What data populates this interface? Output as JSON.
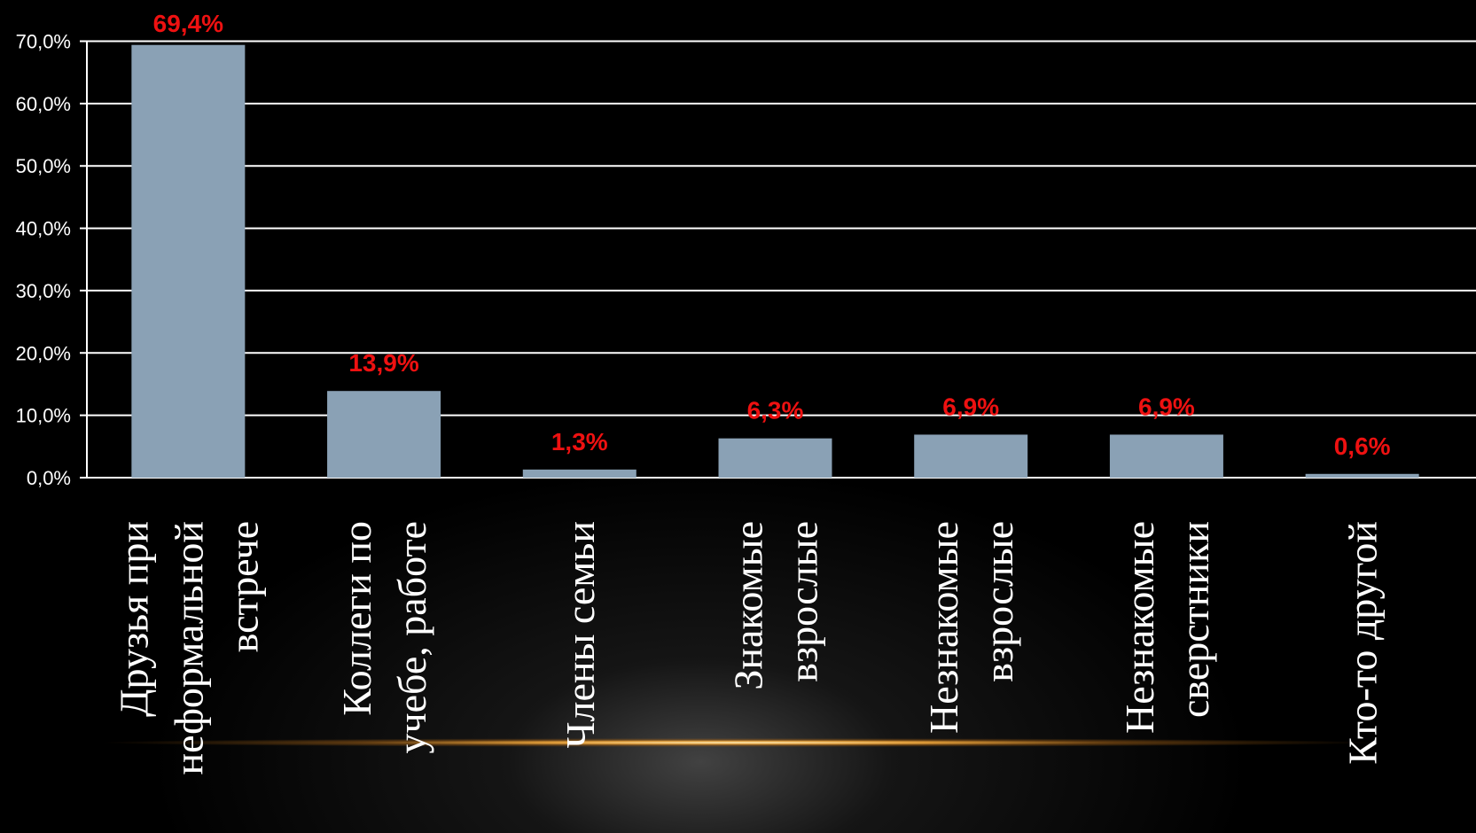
{
  "chart_data": {
    "type": "bar",
    "categories": [
      [
        "Друзья при",
        "неформальной",
        "встрече"
      ],
      [
        "Коллеги по",
        "учебе, работе"
      ],
      [
        "Члены семьи"
      ],
      [
        "Знакомые",
        "взрослые"
      ],
      [
        "Незнакомые",
        "взрослые"
      ],
      [
        "Незнакомые",
        "сверстники"
      ],
      [
        "Кто-то другой"
      ]
    ],
    "values": [
      69.4,
      13.9,
      1.3,
      6.3,
      6.9,
      6.9,
      0.6
    ],
    "data_labels": [
      "69,4%",
      "13,9%",
      "1,3%",
      "6,3%",
      "6,9%",
      "6,9%",
      "0,6%"
    ],
    "y_ticks": [
      0,
      10,
      20,
      30,
      40,
      50,
      60,
      70
    ],
    "y_tick_labels": [
      "0,0%",
      "10,0%",
      "20,0%",
      "30,0%",
      "40,0%",
      "50,0%",
      "60,0%",
      "70,0%"
    ],
    "ylim": [
      0,
      70
    ],
    "grid": true,
    "bar_color": "#8aa1b5",
    "label_color": "#ee1111",
    "axis_color": "#ffffff",
    "background": "#000000"
  }
}
